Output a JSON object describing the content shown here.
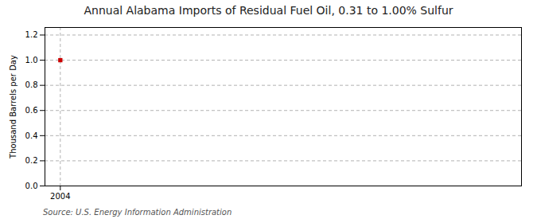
{
  "chart_data": {
    "type": "scatter",
    "title": "Annual Alabama Imports of Residual Fuel Oil, 0.31 to 1.00% Sulfur",
    "ylabel": "Thousand Barrels per Day",
    "source": "Source: U.S. Energy Information Administration",
    "x": [
      2004
    ],
    "values": [
      1.0
    ],
    "color": "#cc0000",
    "marker": "square",
    "xlim": [
      2003.4,
      2022
    ],
    "xticks": [
      2004
    ],
    "ylim": [
      0.0,
      1.26
    ],
    "yticks": [
      {
        "value": 0.0,
        "label": "0.0"
      },
      0.2,
      0.4,
      0.6,
      0.8,
      {
        "value": 1.0,
        "label": "1.0"
      },
      1.2
    ],
    "grid": true
  }
}
